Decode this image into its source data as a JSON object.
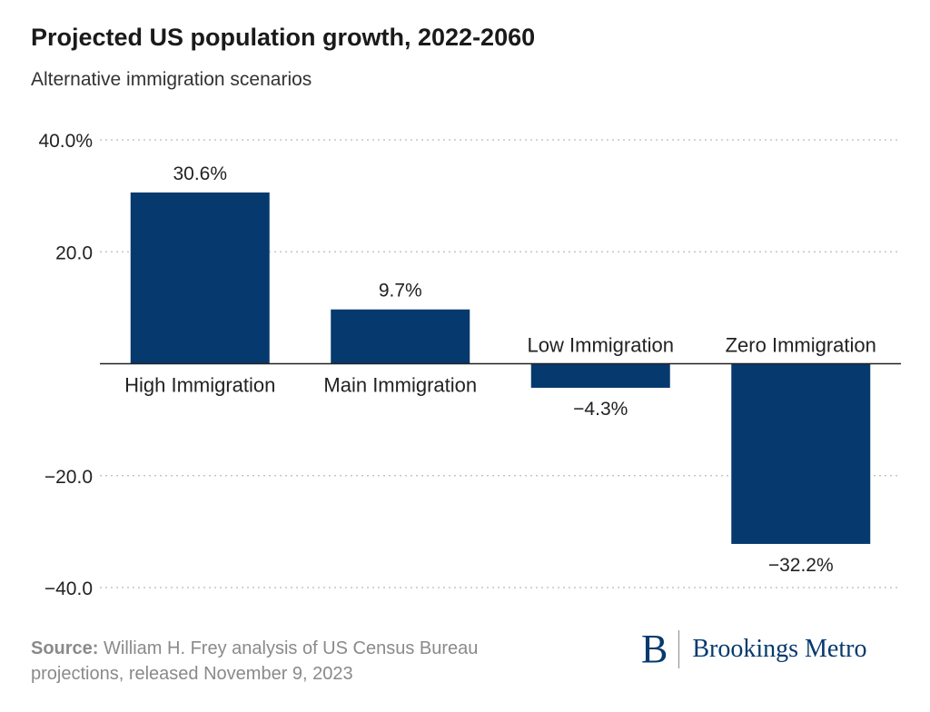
{
  "chart_data": {
    "type": "bar",
    "title": "Projected US population growth, 2022-2060",
    "subtitle": "Alternative immigration scenarios",
    "categories": [
      "High Immigration",
      "Main Immigration",
      "Low Immigration",
      "Zero Immigration"
    ],
    "values": [
      30.6,
      9.7,
      -4.3,
      -32.2
    ],
    "data_labels": [
      "30.6%",
      "9.7%",
      "−4.3%",
      "−32.2%"
    ],
    "yticks": [
      40,
      20,
      -20,
      -40
    ],
    "ytick_labels": [
      "40.0%",
      "20.0",
      "−20.0",
      "−40.0"
    ],
    "ylim": [
      -40,
      40
    ],
    "xlabel": "",
    "ylabel": "",
    "grid": true,
    "bar_color": "#063a6e",
    "grid_color": "#bbbbbb",
    "zero_line_color": "#222222"
  },
  "footer": {
    "source_label": "Source:",
    "source_text": "William H. Frey analysis of US Census Bureau projections, released November 9, 2023"
  },
  "logo": {
    "mark": "B",
    "text": "Brookings Metro",
    "color": "#063a6e"
  }
}
